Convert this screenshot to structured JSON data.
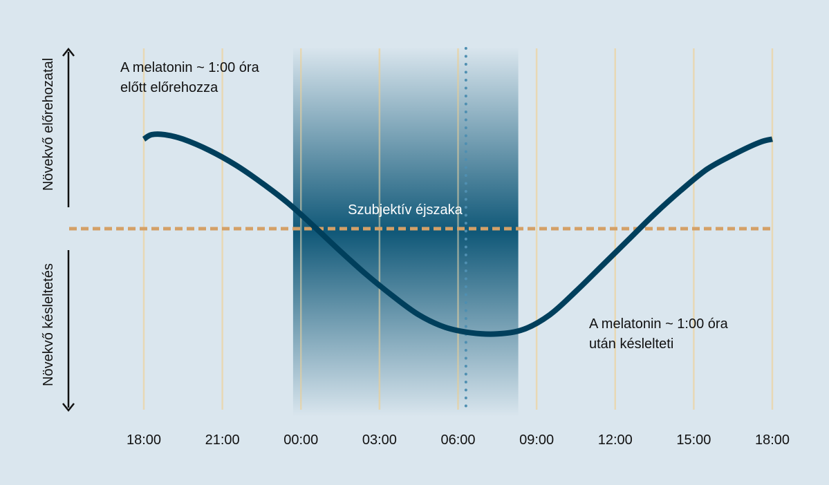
{
  "chart_data": {
    "type": "line",
    "x_ticks": [
      "18:00",
      "21:00",
      "00:00",
      "03:00",
      "06:00",
      "09:00",
      "12:00",
      "15:00",
      "18:00"
    ],
    "x_range_hours": [
      0,
      24
    ],
    "y_range": [
      -1,
      1
    ],
    "y_label_top": "Növekvő előrehozatal",
    "y_label_bottom": "Növekvő késleltetés",
    "baseline": 0,
    "shaded_region": {
      "label": "Szubjektív éjszaka",
      "start_hours": 5.7,
      "end_hours": 14.3
    },
    "marker_line_hours": 12.3,
    "annotations": {
      "advance": [
        "A melatonin ~ 1:00 óra",
        "előtt előrehozza"
      ],
      "delay": [
        "A melatonin ~ 1:00 óra",
        "után késlelteti"
      ]
    },
    "series": [
      {
        "x": [
          0,
          0.3,
          0.8,
          1.5,
          2.5,
          3.5,
          4.5,
          5.5,
          6.5,
          7.5,
          8.5,
          9.5,
          10.5,
          11.5,
          12.5,
          13.5,
          14.5,
          15.5,
          16.5,
          17.5,
          18.5,
          19.5,
          20.5,
          21.5,
          22.5,
          23.5,
          24
        ],
        "y": [
          0.8,
          0.84,
          0.84,
          0.8,
          0.7,
          0.57,
          0.41,
          0.23,
          0.02,
          -0.2,
          -0.41,
          -0.6,
          -0.77,
          -0.88,
          -0.93,
          -0.94,
          -0.9,
          -0.77,
          -0.56,
          -0.33,
          -0.1,
          0.13,
          0.34,
          0.53,
          0.66,
          0.77,
          0.8
        ]
      }
    ]
  },
  "colors": {
    "background": "#dae6ee",
    "curve": "#003f5c",
    "night_band": "#105878",
    "baseline": "#d4a067",
    "gridline": "#e8d8b4",
    "marker_line": "#4f8fb1",
    "text": "#111111",
    "night_label": "#ffffff"
  }
}
